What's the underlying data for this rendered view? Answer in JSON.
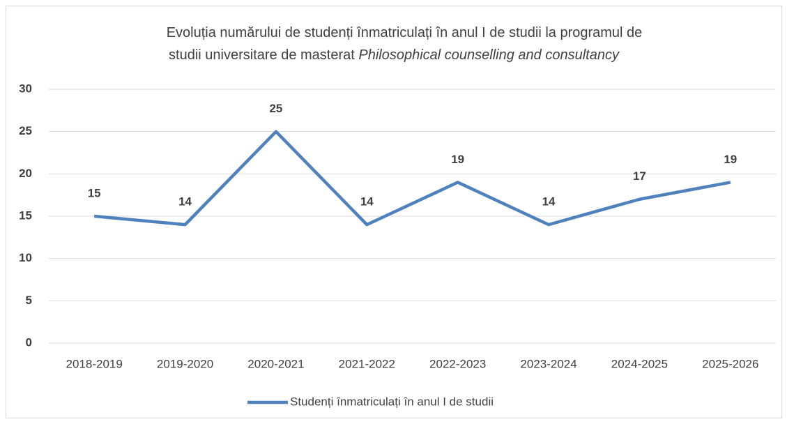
{
  "chart_data": {
    "type": "line",
    "title": [
      "Evoluția numărului de studenți înmatriculați în anul I de studii la programul de",
      "studii universitare de masterat",
      "Philosophical counselling and consultancy"
    ],
    "categories": [
      "2018-2019",
      "2019-2020",
      "2020-2021",
      "2021-2022",
      "2022-2023",
      "2023-2024",
      "2024-2025",
      "2025-2026"
    ],
    "series": [
      {
        "name": "Studenți înmatriculați în anul I de studii",
        "color": "#4f81bd",
        "values": [
          15,
          14,
          25,
          14,
          19,
          14,
          17,
          19
        ]
      }
    ],
    "ylim": [
      0,
      30
    ],
    "yticks": [
      0,
      5,
      10,
      15,
      20,
      25,
      30
    ],
    "grid": true,
    "data_labels": true,
    "legend": "bottom"
  }
}
